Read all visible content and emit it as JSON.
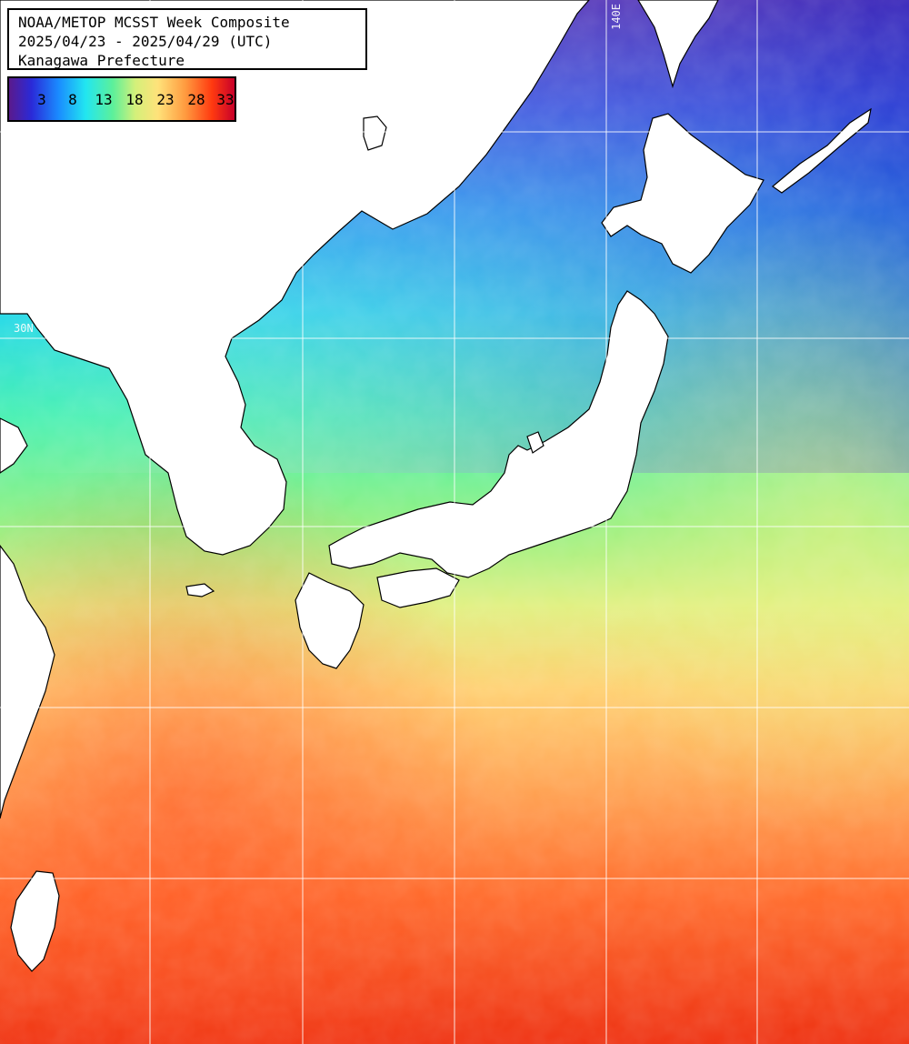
{
  "title": {
    "line1": "NOAA/METOP MCSST Week Composite",
    "line2": "2025/04/23 - 2025/04/29 (UTC)",
    "line3": "Kanagawa Prefecture"
  },
  "legend": {
    "labels": [
      "3",
      "8",
      "13",
      "18",
      "23",
      "28",
      "33"
    ]
  },
  "grid_labels": {
    "lon": "140E",
    "lat": "30N"
  },
  "colors": {
    "land": "#ffffff",
    "coast": "#000000",
    "grid": "#ffffff"
  }
}
